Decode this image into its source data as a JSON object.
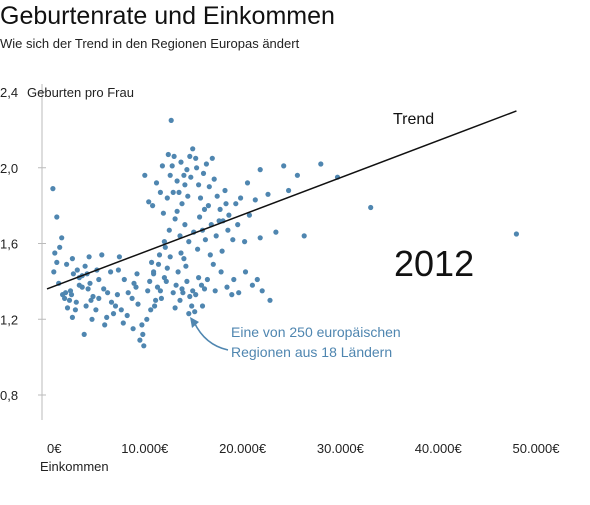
{
  "chart_data": {
    "type": "scatter",
    "title": "Geburtenrate und Einkommen",
    "subtitle": "Wie sich der Trend in den Regionen Europas ändert",
    "xlabel": "Einkommen",
    "ylabel": "Geburten pro Frau",
    "xlim": [
      0,
      50000
    ],
    "ylim": [
      0.8,
      2.4
    ],
    "x_ticks": [
      0,
      10000,
      20000,
      30000,
      40000,
      50000
    ],
    "x_tick_labels": [
      "0€",
      "10.000€",
      "20.000€",
      "30.000€",
      "40.000€",
      "50.000€"
    ],
    "y_ticks": [
      0.8,
      1.2,
      1.6,
      2.0,
      2.4
    ],
    "y_tick_labels": [
      "0,8",
      "1,2",
      "1,6",
      "2,0",
      "2,4"
    ],
    "grid": false,
    "point_color": "#4f86b0",
    "year_label": "2012",
    "trend": {
      "label": "Trend",
      "x": [
        0,
        48000
      ],
      "y": [
        1.36,
        2.3
      ]
    },
    "annotation": {
      "lines": [
        "Eine von 250 europäischen",
        "Regionen aus 18 Ländern"
      ]
    },
    "points": [
      [
        600,
        1.89
      ],
      [
        1000,
        1.74
      ],
      [
        800,
        1.55
      ],
      [
        1300,
        1.58
      ],
      [
        1000,
        1.5
      ],
      [
        1500,
        1.63
      ],
      [
        700,
        1.45
      ],
      [
        1200,
        1.39
      ],
      [
        1600,
        1.33
      ],
      [
        1900,
        1.34
      ],
      [
        2300,
        1.3
      ],
      [
        2100,
        1.26
      ],
      [
        2600,
        1.21
      ],
      [
        2500,
        1.33
      ],
      [
        3000,
        1.29
      ],
      [
        1800,
        1.31
      ],
      [
        2700,
        1.44
      ],
      [
        3300,
        1.38
      ],
      [
        2000,
        1.49
      ],
      [
        2600,
        1.52
      ],
      [
        3100,
        1.46
      ],
      [
        3600,
        1.43
      ],
      [
        3900,
        1.48
      ],
      [
        4200,
        1.36
      ],
      [
        4400,
        1.39
      ],
      [
        4000,
        1.27
      ],
      [
        4700,
        1.32
      ],
      [
        3300,
        1.42
      ],
      [
        5300,
        1.31
      ],
      [
        5000,
        1.25
      ],
      [
        4600,
        1.2
      ],
      [
        5800,
        1.36
      ],
      [
        5100,
        1.46
      ],
      [
        5600,
        1.54
      ],
      [
        4300,
        1.53
      ],
      [
        4100,
        1.44
      ],
      [
        3600,
        1.37
      ],
      [
        2900,
        1.25
      ],
      [
        2400,
        1.35
      ],
      [
        6200,
        1.34
      ],
      [
        6600,
        1.29
      ],
      [
        6100,
        1.21
      ],
      [
        5900,
        1.17
      ],
      [
        7200,
        1.33
      ],
      [
        7000,
        1.27
      ],
      [
        7600,
        1.25
      ],
      [
        7900,
        1.41
      ],
      [
        7300,
        1.46
      ],
      [
        8300,
        1.34
      ],
      [
        8700,
        1.31
      ],
      [
        8200,
        1.22
      ],
      [
        7800,
        1.18
      ],
      [
        7400,
        1.53
      ],
      [
        9100,
        1.37
      ],
      [
        9300,
        1.28
      ],
      [
        9700,
        1.17
      ],
      [
        8800,
        1.15
      ],
      [
        9500,
        1.09
      ],
      [
        9900,
        1.06
      ],
      [
        10200,
        1.2
      ],
      [
        10500,
        1.4
      ],
      [
        10900,
        1.44
      ],
      [
        11300,
        1.37
      ],
      [
        11100,
        1.3
      ],
      [
        10700,
        1.5
      ],
      [
        11700,
        1.31
      ],
      [
        12000,
        1.42
      ],
      [
        12300,
        1.47
      ],
      [
        12600,
        1.53
      ],
      [
        12900,
        1.34
      ],
      [
        11500,
        1.54
      ],
      [
        12100,
        1.58
      ],
      [
        12500,
        1.67
      ],
      [
        13200,
        1.38
      ],
      [
        13600,
        1.3
      ],
      [
        13900,
        1.34
      ],
      [
        14300,
        1.4
      ],
      [
        14600,
        1.32
      ],
      [
        14200,
        1.48
      ],
      [
        14900,
        1.35
      ],
      [
        15200,
        1.33
      ],
      [
        15500,
        1.42
      ],
      [
        15800,
        1.38
      ],
      [
        14800,
        1.27
      ],
      [
        15100,
        1.24
      ],
      [
        13400,
        1.45
      ],
      [
        13700,
        1.55
      ],
      [
        10300,
        1.35
      ],
      [
        10600,
        1.25
      ],
      [
        11600,
        1.35
      ],
      [
        10000,
        1.96
      ],
      [
        10400,
        1.82
      ],
      [
        10800,
        1.8
      ],
      [
        11200,
        1.92
      ],
      [
        11600,
        1.87
      ],
      [
        11900,
        1.76
      ],
      [
        12300,
        1.84
      ],
      [
        12600,
        1.96
      ],
      [
        12800,
        2.01
      ],
      [
        13000,
        2.06
      ],
      [
        13300,
        1.93
      ],
      [
        13500,
        1.87
      ],
      [
        13800,
        1.81
      ],
      [
        14000,
        1.96
      ],
      [
        14300,
        1.99
      ],
      [
        14600,
        2.06
      ],
      [
        14900,
        2.1
      ],
      [
        15200,
        2.05
      ],
      [
        15500,
        1.91
      ],
      [
        15700,
        1.84
      ],
      [
        16000,
        1.97
      ],
      [
        16300,
        2.02
      ],
      [
        16600,
        1.9
      ],
      [
        16900,
        2.05
      ],
      [
        17100,
        1.94
      ],
      [
        17400,
        1.85
      ],
      [
        17700,
        1.78
      ],
      [
        18000,
        1.72
      ],
      [
        18300,
        1.81
      ],
      [
        18600,
        1.75
      ],
      [
        13100,
        1.73
      ],
      [
        13600,
        1.64
      ],
      [
        14100,
        1.7
      ],
      [
        14500,
        1.61
      ],
      [
        15000,
        1.66
      ],
      [
        15400,
        1.57
      ],
      [
        15900,
        1.67
      ],
      [
        16200,
        1.62
      ],
      [
        16800,
        1.7
      ],
      [
        17300,
        1.64
      ],
      [
        17900,
        1.56
      ],
      [
        18500,
        1.67
      ],
      [
        19000,
        1.62
      ],
      [
        19500,
        1.7
      ],
      [
        20200,
        1.61
      ],
      [
        20700,
        1.75
      ],
      [
        21300,
        1.83
      ],
      [
        21800,
        1.99
      ],
      [
        12900,
        1.87
      ],
      [
        13700,
        2.03
      ],
      [
        14100,
        1.91
      ],
      [
        14700,
        1.95
      ],
      [
        15300,
        2.0
      ],
      [
        16100,
        1.78
      ],
      [
        16500,
        1.8
      ],
      [
        17600,
        1.72
      ],
      [
        18200,
        1.88
      ],
      [
        19300,
        1.81
      ],
      [
        19800,
        1.84
      ],
      [
        11800,
        2.01
      ],
      [
        12400,
        2.07
      ],
      [
        13300,
        1.77
      ],
      [
        12000,
        1.61
      ],
      [
        12700,
        2.25
      ],
      [
        14400,
        1.85
      ],
      [
        15600,
        1.74
      ],
      [
        16700,
        1.54
      ],
      [
        17000,
        1.49
      ],
      [
        17800,
        1.45
      ],
      [
        18400,
        1.37
      ],
      [
        19100,
        1.41
      ],
      [
        19600,
        1.34
      ],
      [
        20300,
        1.45
      ],
      [
        21000,
        1.38
      ],
      [
        22000,
        1.35
      ],
      [
        22800,
        1.3
      ],
      [
        21500,
        1.41
      ],
      [
        18900,
        1.33
      ],
      [
        17200,
        1.35
      ],
      [
        16400,
        1.41
      ],
      [
        15900,
        1.27
      ],
      [
        16100,
        1.36
      ],
      [
        14000,
        1.52
      ],
      [
        13100,
        1.26
      ],
      [
        13800,
        1.36
      ],
      [
        24200,
        2.01
      ],
      [
        25600,
        1.96
      ],
      [
        28000,
        2.02
      ],
      [
        29700,
        1.95
      ],
      [
        23400,
        1.66
      ],
      [
        26300,
        1.64
      ],
      [
        24700,
        1.88
      ],
      [
        21800,
        1.63
      ],
      [
        33100,
        1.79
      ],
      [
        48000,
        1.65
      ],
      [
        22600,
        1.86
      ],
      [
        20500,
        1.92
      ],
      [
        11000,
        1.27
      ],
      [
        14500,
        1.23
      ],
      [
        9800,
        1.12
      ],
      [
        6500,
        1.45
      ],
      [
        8900,
        1.39
      ],
      [
        3800,
        1.12
      ],
      [
        4500,
        1.3
      ],
      [
        5300,
        1.41
      ],
      [
        6800,
        1.23
      ],
      [
        9200,
        1.44
      ],
      [
        10900,
        1.45
      ],
      [
        11400,
        1.49
      ],
      [
        12200,
        1.4
      ]
    ]
  }
}
